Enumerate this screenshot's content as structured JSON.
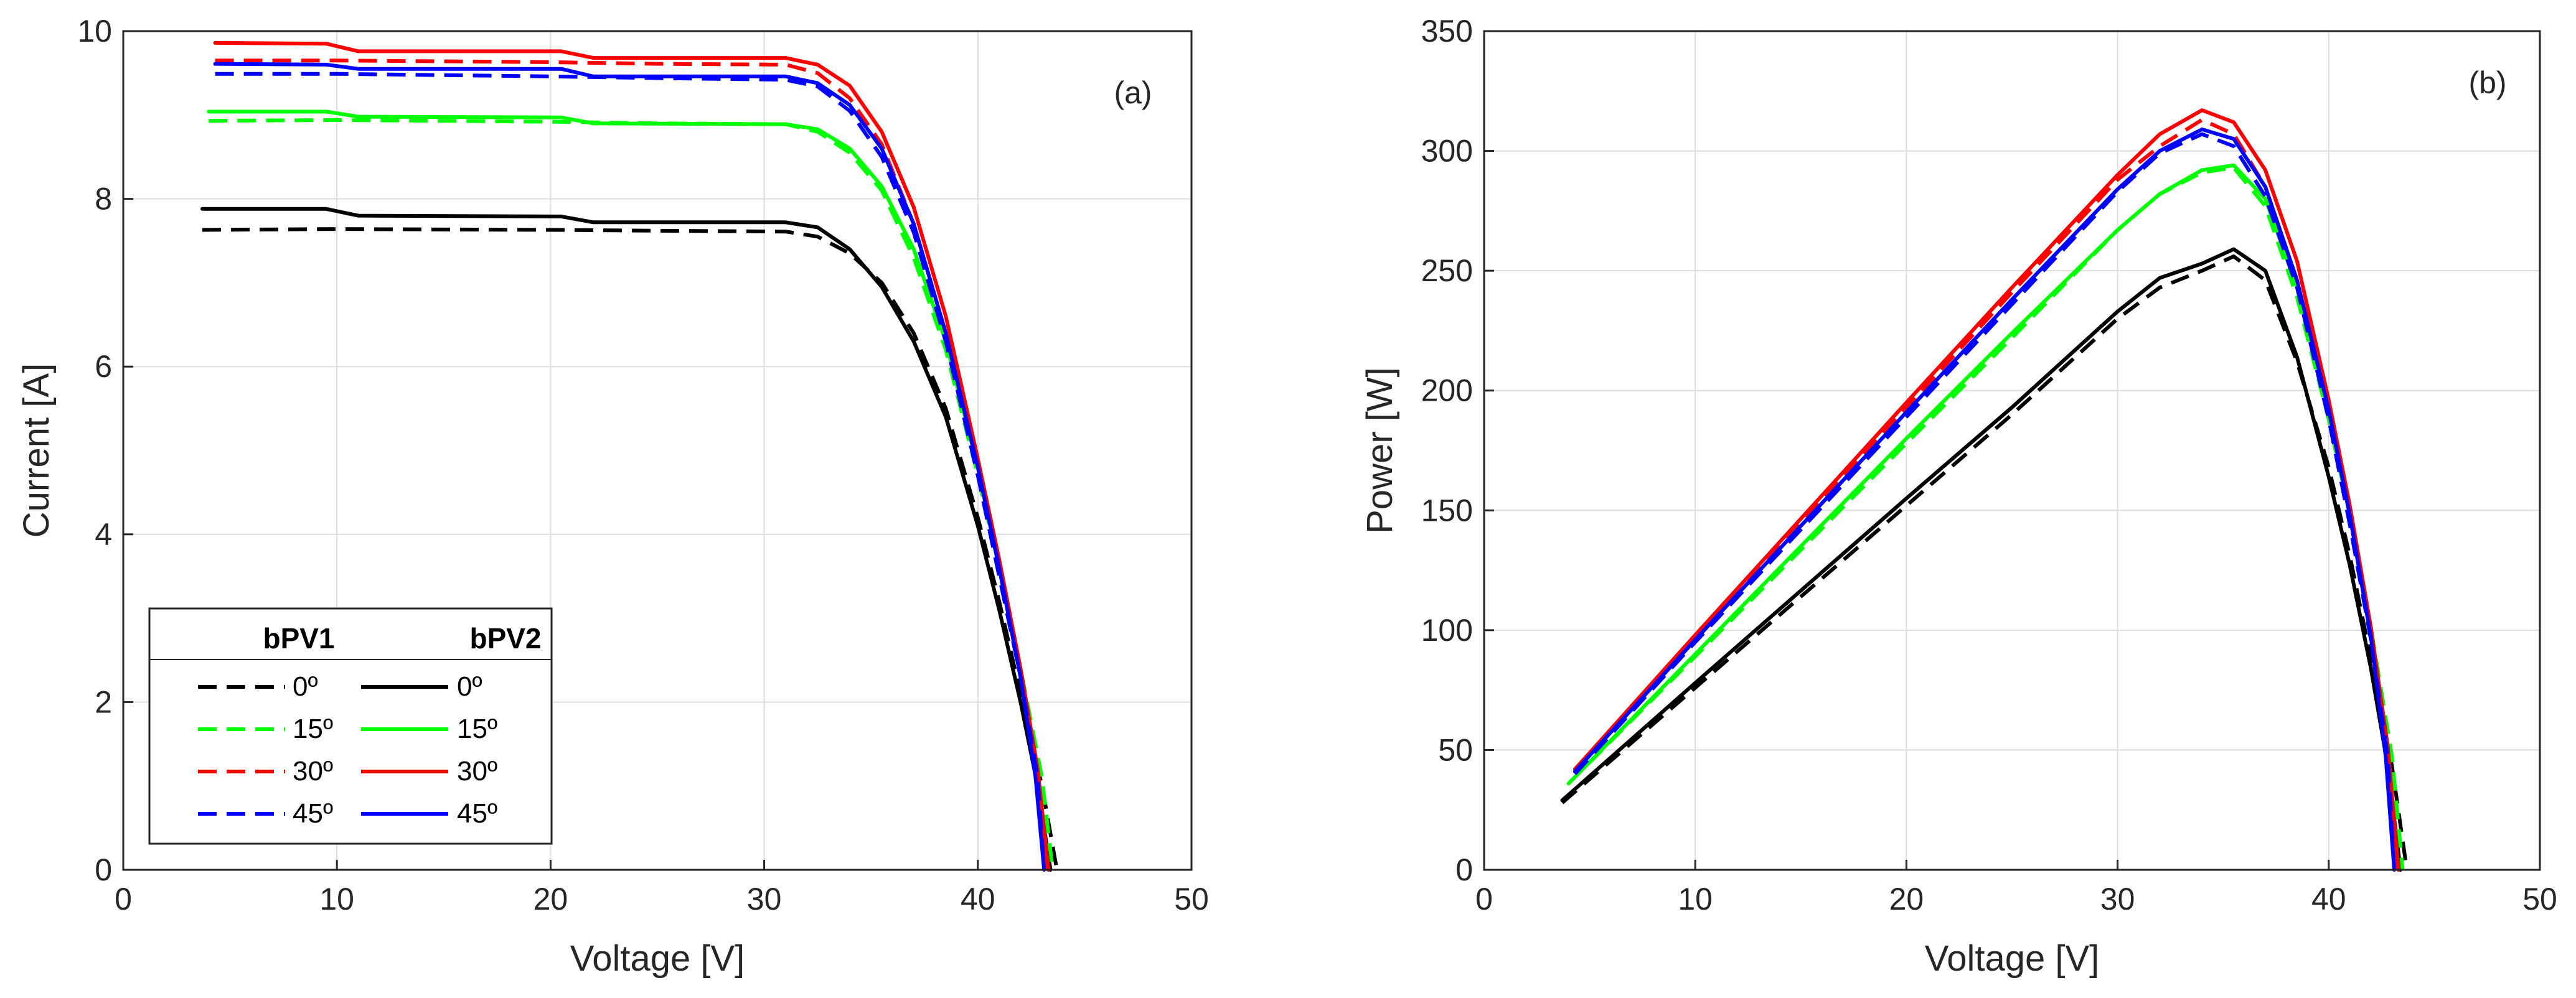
{
  "colors": {
    "0": "#000000",
    "15": "#00ff00",
    "30": "#ff0000",
    "45": "#0000ff",
    "grid": "#dddddd",
    "axis": "#262626"
  },
  "chart_data": [
    {
      "id": "a",
      "type": "line",
      "panel_label": "(a)",
      "xlabel": "Voltage [V]",
      "ylabel": "Current [A]",
      "xlim": [
        0,
        50
      ],
      "ylim": [
        0,
        10
      ],
      "xticks": [
        0,
        10,
        20,
        30,
        40,
        50
      ],
      "yticks": [
        0,
        2,
        4,
        6,
        8,
        10
      ],
      "grid": true,
      "legend": {
        "placement": "bottom-left",
        "headers": [
          "bPV1",
          "bPV2"
        ],
        "entries": [
          "0º",
          "15º",
          "30º",
          "45º"
        ]
      },
      "series": [
        {
          "name": "bPV1 0º",
          "module": "bPV1",
          "angle": "0",
          "dash": true,
          "x": [
            3.7,
            10,
            20,
            25,
            31,
            32.5,
            34,
            35.5,
            37,
            38.5,
            40,
            41,
            42,
            43,
            43.7
          ],
          "y": [
            7.63,
            7.64,
            7.63,
            7.62,
            7.61,
            7.55,
            7.35,
            7.0,
            6.4,
            5.5,
            4.2,
            3.2,
            2.1,
            1.0,
            0
          ]
        },
        {
          "name": "bPV2 0º",
          "module": "bPV2",
          "angle": "0",
          "dash": false,
          "x": [
            3.7,
            9.5,
            11,
            20.5,
            22,
            31,
            32.5,
            34,
            35.5,
            37,
            38.5,
            40,
            41,
            42,
            42.8,
            43.4
          ],
          "y": [
            7.88,
            7.88,
            7.8,
            7.79,
            7.72,
            7.72,
            7.66,
            7.4,
            6.95,
            6.3,
            5.4,
            4.1,
            3.1,
            2.0,
            1.0,
            0
          ]
        },
        {
          "name": "bPV1 15º",
          "module": "bPV1",
          "angle": "15",
          "dash": true,
          "x": [
            4,
            10,
            20,
            25,
            31,
            32.5,
            34,
            35.5,
            37,
            38.5,
            40,
            41,
            42,
            43,
            43.5
          ],
          "y": [
            8.93,
            8.94,
            8.92,
            8.9,
            8.89,
            8.8,
            8.55,
            8.1,
            7.3,
            6.2,
            4.7,
            3.6,
            2.4,
            1.1,
            0
          ]
        },
        {
          "name": "bPV2 15º",
          "module": "bPV2",
          "angle": "15",
          "dash": false,
          "x": [
            4,
            9.5,
            11,
            20.5,
            22,
            31,
            32.5,
            34,
            35.5,
            37,
            38.5,
            40,
            41,
            42,
            42.8,
            43.3
          ],
          "y": [
            9.04,
            9.04,
            8.98,
            8.97,
            8.9,
            8.89,
            8.83,
            8.6,
            8.15,
            7.4,
            6.3,
            4.8,
            3.6,
            2.4,
            1.2,
            0
          ]
        },
        {
          "name": "bPV1 30º",
          "module": "bPV1",
          "angle": "30",
          "dash": true,
          "x": [
            4.3,
            10,
            20,
            25,
            31,
            32.5,
            34,
            35.5,
            37,
            38.5,
            40,
            41,
            42,
            42.8,
            43.2
          ],
          "y": [
            9.65,
            9.65,
            9.63,
            9.61,
            9.6,
            9.5,
            9.2,
            8.65,
            7.7,
            6.4,
            4.8,
            3.6,
            2.3,
            1.2,
            0
          ]
        },
        {
          "name": "bPV2 30º",
          "module": "bPV2",
          "angle": "30",
          "dash": false,
          "x": [
            4.3,
            9.5,
            11,
            20.5,
            22,
            31,
            32.5,
            34,
            35.5,
            37,
            38.5,
            40,
            41,
            42,
            42.8,
            43.3
          ],
          "y": [
            9.86,
            9.85,
            9.76,
            9.76,
            9.68,
            9.68,
            9.6,
            9.35,
            8.8,
            7.9,
            6.6,
            4.9,
            3.7,
            2.4,
            1.2,
            0
          ]
        },
        {
          "name": "bPV1 45º",
          "module": "bPV1",
          "angle": "45",
          "dash": true,
          "x": [
            4.3,
            10,
            20,
            25,
            31,
            32.5,
            34,
            35.5,
            37,
            38.5,
            40,
            41,
            42,
            42.8,
            43.1
          ],
          "y": [
            9.49,
            9.49,
            9.46,
            9.44,
            9.42,
            9.34,
            9.05,
            8.5,
            7.6,
            6.3,
            4.7,
            3.5,
            2.3,
            1.1,
            0
          ]
        },
        {
          "name": "bPV2 45º",
          "module": "bPV2",
          "angle": "45",
          "dash": false,
          "x": [
            4.3,
            9.5,
            11,
            20.5,
            22,
            31,
            32.5,
            34,
            35.5,
            37,
            38.5,
            40,
            41,
            42,
            42.7,
            43.1
          ],
          "y": [
            9.61,
            9.6,
            9.55,
            9.55,
            9.46,
            9.46,
            9.38,
            9.12,
            8.6,
            7.7,
            6.4,
            4.8,
            3.6,
            2.3,
            1.1,
            0
          ]
        }
      ]
    },
    {
      "id": "b",
      "type": "line",
      "panel_label": "(b)",
      "xlabel": "Voltage [V]",
      "ylabel": "Power [W]",
      "xlim": [
        0,
        50
      ],
      "ylim": [
        0,
        350
      ],
      "xticks": [
        0,
        10,
        20,
        30,
        40,
        50
      ],
      "yticks": [
        0,
        50,
        100,
        150,
        200,
        250,
        300,
        350
      ],
      "grid": true,
      "series": [
        {
          "name": "bPV1 0º",
          "module": "bPV1",
          "angle": "0",
          "dash": true,
          "x": [
            3.7,
            10,
            20,
            25,
            30,
            32,
            34,
            35.5,
            37,
            38.5,
            40,
            41,
            42,
            43,
            43.7
          ],
          "y": [
            28,
            76,
            152,
            190,
            230,
            243,
            250,
            256,
            246,
            212,
            168,
            131,
            88,
            43,
            0
          ]
        },
        {
          "name": "bPV2 0º",
          "module": "bPV2",
          "angle": "0",
          "dash": false,
          "x": [
            3.7,
            10,
            20,
            25,
            30,
            32,
            34,
            35.5,
            37,
            38.5,
            40,
            41,
            42,
            42.8,
            43.4
          ],
          "y": [
            29,
            78,
            155,
            193,
            233,
            247,
            253,
            259,
            250,
            214,
            164,
            127,
            84,
            43,
            0
          ]
        },
        {
          "name": "bPV1 15º",
          "module": "bPV1",
          "angle": "15",
          "dash": true,
          "x": [
            4,
            10,
            20,
            25,
            30,
            32,
            34,
            35.5,
            37,
            38.5,
            40,
            41,
            42,
            43,
            43.5
          ],
          "y": [
            36,
            89,
            178,
            222,
            267,
            282,
            291,
            293,
            277,
            239,
            188,
            148,
            101,
            47,
            0
          ]
        },
        {
          "name": "bPV2 15º",
          "module": "bPV2",
          "angle": "15",
          "dash": false,
          "x": [
            4,
            10,
            20,
            25,
            30,
            32,
            34,
            35.5,
            37,
            38.5,
            40,
            41,
            42,
            42.8,
            43.3
          ],
          "y": [
            36,
            90,
            180,
            224,
            267,
            282,
            292,
            294,
            280,
            243,
            192,
            148,
            101,
            51,
            0
          ]
        },
        {
          "name": "bPV1 30º",
          "module": "bPV1",
          "angle": "30",
          "dash": true,
          "x": [
            4.3,
            10,
            20,
            25,
            30,
            32,
            34,
            35.5,
            37,
            38.5,
            40,
            41,
            42,
            42.8,
            43.2
          ],
          "y": [
            41,
            97,
            193,
            241,
            288,
            302,
            313,
            307,
            285,
            246,
            192,
            148,
            97,
            51,
            0
          ]
        },
        {
          "name": "bPV2 30º",
          "module": "bPV2",
          "angle": "30",
          "dash": false,
          "x": [
            4.3,
            10,
            20,
            25,
            30,
            32,
            34,
            35.5,
            37,
            38.5,
            40,
            41,
            42,
            42.8,
            43.3
          ],
          "y": [
            42,
            98,
            195,
            243,
            290,
            307,
            317,
            312,
            292,
            254,
            196,
            152,
            101,
            51,
            0
          ]
        },
        {
          "name": "bPV1 45º",
          "module": "bPV1",
          "angle": "45",
          "dash": true,
          "x": [
            4.3,
            10,
            20,
            25,
            30,
            32,
            34,
            35.5,
            37,
            38.5,
            40,
            41,
            42,
            42.8,
            43.1
          ],
          "y": [
            40,
            95,
            189,
            236,
            283,
            299,
            307,
            302,
            281,
            243,
            188,
            144,
            96,
            47,
            0
          ]
        },
        {
          "name": "bPV2 45º",
          "module": "bPV2",
          "angle": "45",
          "dash": false,
          "x": [
            4.3,
            10,
            20,
            25,
            30,
            32,
            34,
            35.5,
            37,
            38.5,
            40,
            41,
            42,
            42.7,
            43.1
          ],
          "y": [
            41,
            96,
            191,
            238,
            284,
            300,
            309,
            305,
            285,
            246,
            192,
            148,
            97,
            47,
            0
          ]
        }
      ]
    }
  ]
}
